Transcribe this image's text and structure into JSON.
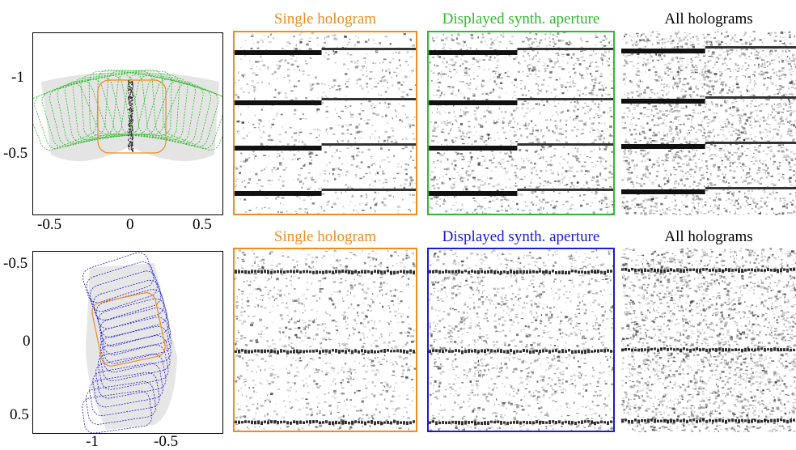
{
  "colors": {
    "orange": "#f08c1e",
    "green": "#2dbb2d",
    "blue": "#1a1ad8",
    "axis": "#000000"
  },
  "top_row": {
    "scatter_plot": {
      "y_ticks": [
        "-1",
        "-0.5"
      ],
      "x_ticks": [
        "-0.5",
        "0",
        "0.5"
      ],
      "outline_colors": [
        "green",
        "orange"
      ]
    },
    "panels": [
      {
        "title": "Single hologram",
        "title_color": "orange",
        "border_color": "orange"
      },
      {
        "title": "Displayed synth. aperture",
        "title_color": "green",
        "border_color": "green"
      },
      {
        "title": "All holograms",
        "title_color": "black",
        "border_color": "none"
      }
    ]
  },
  "bottom_row": {
    "scatter_plot": {
      "y_ticks": [
        "-0.5",
        "0",
        "0.5"
      ],
      "x_ticks": [
        "-1",
        "-0.5"
      ],
      "outline_colors": [
        "blue",
        "orange"
      ]
    },
    "panels": [
      {
        "title": "Single hologram",
        "title_color": "orange",
        "border_color": "orange"
      },
      {
        "title": "Displayed synth. aperture",
        "title_color": "blue",
        "border_color": "blue"
      },
      {
        "title": "All holograms",
        "title_color": "black",
        "border_color": "none"
      }
    ]
  }
}
